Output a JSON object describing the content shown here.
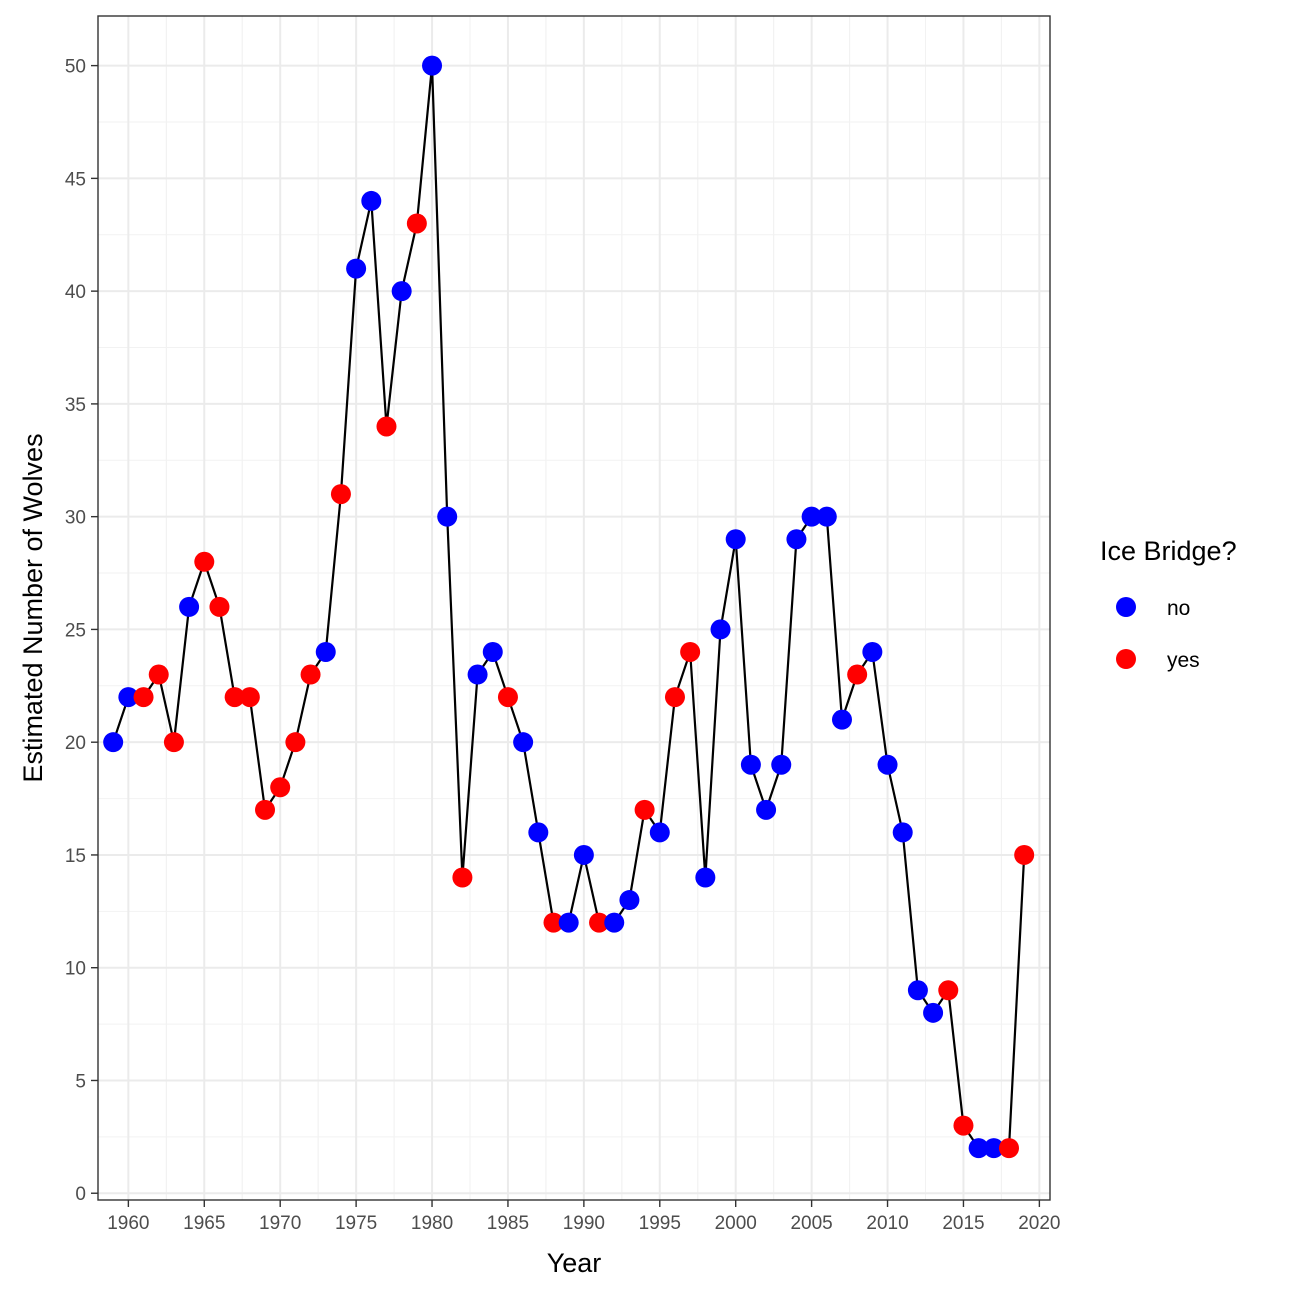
{
  "chart_data": {
    "type": "line",
    "xlabel": "Year",
    "ylabel": "Estimated Number of Wolves",
    "xlim": [
      1958,
      2020.7
    ],
    "ylim": [
      -0.3,
      52.2
    ],
    "x_ticks": [
      1960,
      1965,
      1970,
      1975,
      1980,
      1985,
      1990,
      1995,
      2000,
      2005,
      2010,
      2015,
      2020
    ],
    "y_ticks": [
      0,
      5,
      10,
      15,
      20,
      25,
      30,
      35,
      40,
      45,
      50
    ],
    "grid": true,
    "legend": {
      "title": "Ice Bridge?",
      "placement": "right",
      "entries": [
        {
          "label": "no",
          "color": "#0000FF"
        },
        {
          "label": "yes",
          "color": "#FF0000"
        }
      ]
    },
    "line_color": "#000000",
    "points": [
      {
        "x": 1959,
        "y": 20,
        "ice_bridge": "no"
      },
      {
        "x": 1960,
        "y": 22,
        "ice_bridge": "no"
      },
      {
        "x": 1961,
        "y": 22,
        "ice_bridge": "yes"
      },
      {
        "x": 1962,
        "y": 23,
        "ice_bridge": "yes"
      },
      {
        "x": 1963,
        "y": 20,
        "ice_bridge": "yes"
      },
      {
        "x": 1964,
        "y": 26,
        "ice_bridge": "no"
      },
      {
        "x": 1965,
        "y": 28,
        "ice_bridge": "yes"
      },
      {
        "x": 1966,
        "y": 26,
        "ice_bridge": "yes"
      },
      {
        "x": 1967,
        "y": 22,
        "ice_bridge": "yes"
      },
      {
        "x": 1968,
        "y": 22,
        "ice_bridge": "yes"
      },
      {
        "x": 1969,
        "y": 17,
        "ice_bridge": "yes"
      },
      {
        "x": 1970,
        "y": 18,
        "ice_bridge": "yes"
      },
      {
        "x": 1971,
        "y": 20,
        "ice_bridge": "yes"
      },
      {
        "x": 1972,
        "y": 23,
        "ice_bridge": "yes"
      },
      {
        "x": 1973,
        "y": 24,
        "ice_bridge": "no"
      },
      {
        "x": 1974,
        "y": 31,
        "ice_bridge": "yes"
      },
      {
        "x": 1975,
        "y": 41,
        "ice_bridge": "no"
      },
      {
        "x": 1976,
        "y": 44,
        "ice_bridge": "no"
      },
      {
        "x": 1977,
        "y": 34,
        "ice_bridge": "yes"
      },
      {
        "x": 1978,
        "y": 40,
        "ice_bridge": "no"
      },
      {
        "x": 1979,
        "y": 43,
        "ice_bridge": "yes"
      },
      {
        "x": 1980,
        "y": 50,
        "ice_bridge": "no"
      },
      {
        "x": 1981,
        "y": 30,
        "ice_bridge": "no"
      },
      {
        "x": 1982,
        "y": 14,
        "ice_bridge": "yes"
      },
      {
        "x": 1983,
        "y": 23,
        "ice_bridge": "no"
      },
      {
        "x": 1984,
        "y": 24,
        "ice_bridge": "no"
      },
      {
        "x": 1985,
        "y": 22,
        "ice_bridge": "yes"
      },
      {
        "x": 1986,
        "y": 20,
        "ice_bridge": "no"
      },
      {
        "x": 1987,
        "y": 16,
        "ice_bridge": "no"
      },
      {
        "x": 1988,
        "y": 12,
        "ice_bridge": "yes"
      },
      {
        "x": 1989,
        "y": 12,
        "ice_bridge": "no"
      },
      {
        "x": 1990,
        "y": 15,
        "ice_bridge": "no"
      },
      {
        "x": 1991,
        "y": 12,
        "ice_bridge": "yes"
      },
      {
        "x": 1992,
        "y": 12,
        "ice_bridge": "no"
      },
      {
        "x": 1993,
        "y": 13,
        "ice_bridge": "no"
      },
      {
        "x": 1994,
        "y": 17,
        "ice_bridge": "yes"
      },
      {
        "x": 1995,
        "y": 16,
        "ice_bridge": "no"
      },
      {
        "x": 1996,
        "y": 22,
        "ice_bridge": "yes"
      },
      {
        "x": 1997,
        "y": 24,
        "ice_bridge": "yes"
      },
      {
        "x": 1998,
        "y": 14,
        "ice_bridge": "no"
      },
      {
        "x": 1999,
        "y": 25,
        "ice_bridge": "no"
      },
      {
        "x": 2000,
        "y": 29,
        "ice_bridge": "no"
      },
      {
        "x": 2001,
        "y": 19,
        "ice_bridge": "no"
      },
      {
        "x": 2002,
        "y": 17,
        "ice_bridge": "no"
      },
      {
        "x": 2003,
        "y": 19,
        "ice_bridge": "no"
      },
      {
        "x": 2004,
        "y": 29,
        "ice_bridge": "no"
      },
      {
        "x": 2005,
        "y": 30,
        "ice_bridge": "no"
      },
      {
        "x": 2006,
        "y": 30,
        "ice_bridge": "no"
      },
      {
        "x": 2007,
        "y": 21,
        "ice_bridge": "no"
      },
      {
        "x": 2008,
        "y": 23,
        "ice_bridge": "yes"
      },
      {
        "x": 2009,
        "y": 24,
        "ice_bridge": "no"
      },
      {
        "x": 2010,
        "y": 19,
        "ice_bridge": "no"
      },
      {
        "x": 2011,
        "y": 16,
        "ice_bridge": "no"
      },
      {
        "x": 2012,
        "y": 9,
        "ice_bridge": "no"
      },
      {
        "x": 2013,
        "y": 8,
        "ice_bridge": "no"
      },
      {
        "x": 2014,
        "y": 9,
        "ice_bridge": "yes"
      },
      {
        "x": 2015,
        "y": 3,
        "ice_bridge": "yes"
      },
      {
        "x": 2016,
        "y": 2,
        "ice_bridge": "no"
      },
      {
        "x": 2017,
        "y": 2,
        "ice_bridge": "no"
      },
      {
        "x": 2018,
        "y": 2,
        "ice_bridge": "yes"
      },
      {
        "x": 2019,
        "y": 15,
        "ice_bridge": "yes"
      }
    ]
  }
}
